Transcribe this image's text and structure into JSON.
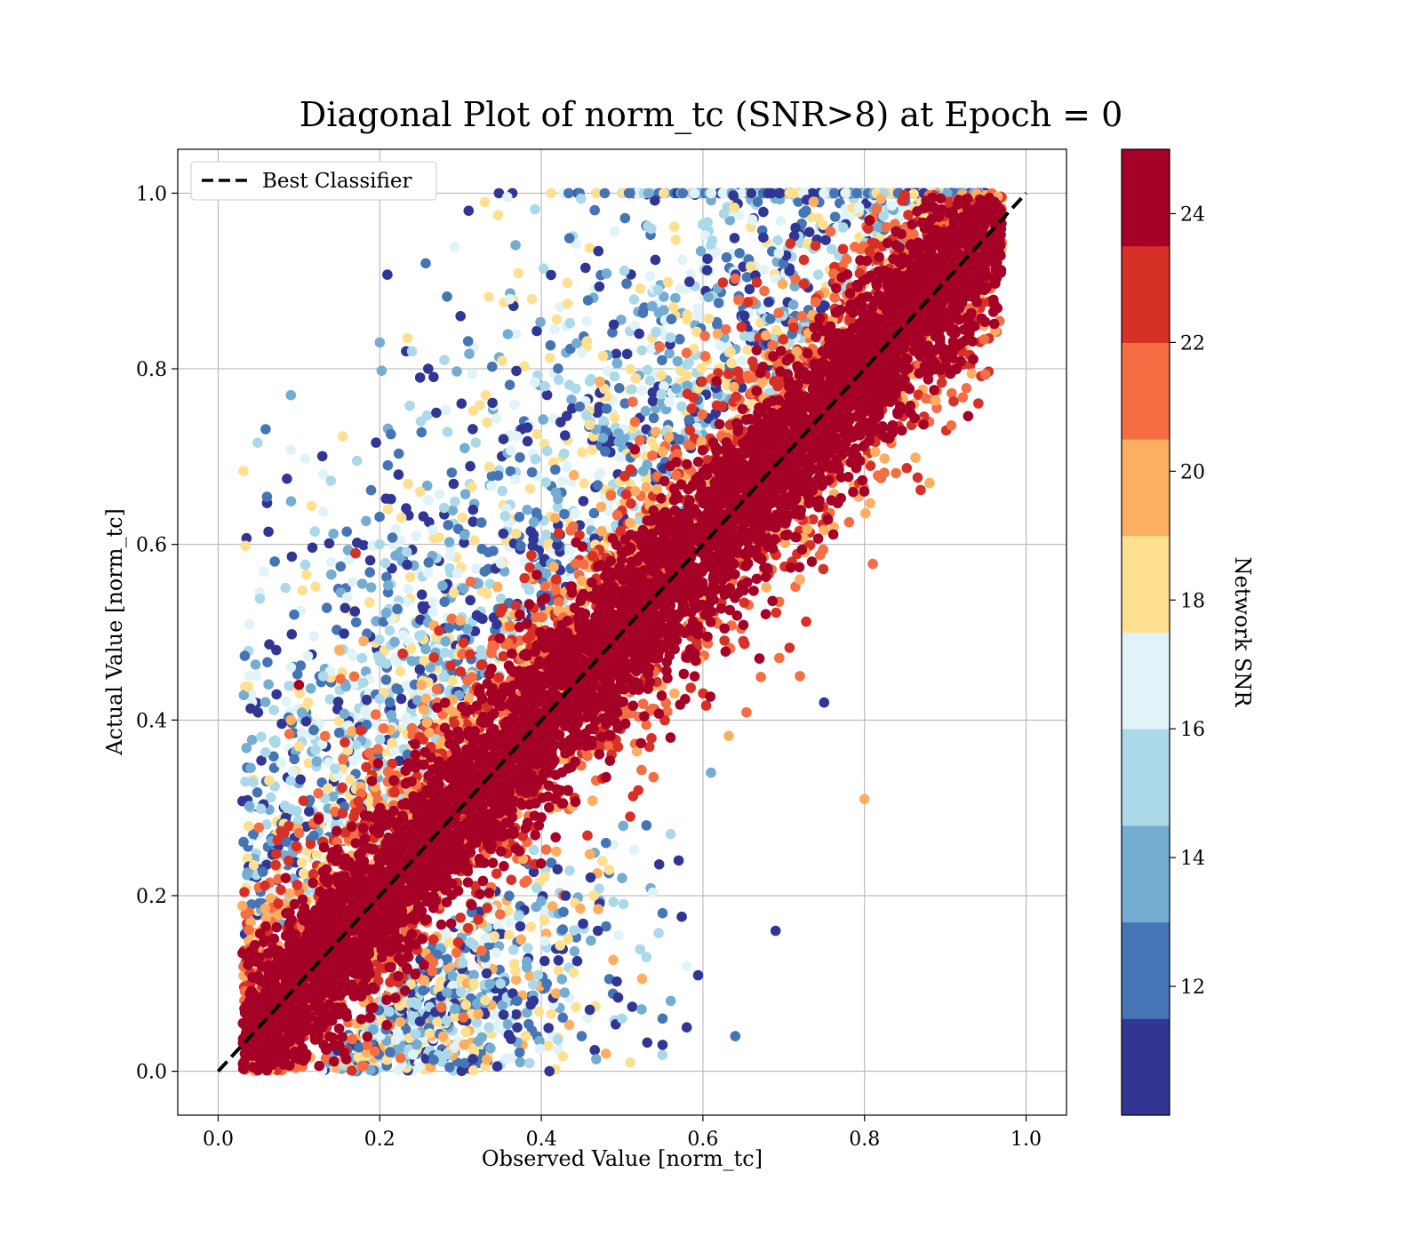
{
  "chart_data": {
    "type": "scatter",
    "title": "Diagonal Plot of norm_tc (SNR>8) at Epoch = 0",
    "xlabel": "Observed Value [norm_tc]",
    "ylabel": "Actual Value [norm_tc]",
    "xlim": [
      -0.05,
      1.05
    ],
    "ylim": [
      -0.05,
      1.05
    ],
    "xticks": [
      "0.0",
      "0.2",
      "0.4",
      "0.6",
      "0.8",
      "1.0"
    ],
    "yticks": [
      "0.0",
      "0.2",
      "0.4",
      "0.6",
      "0.8",
      "1.0"
    ],
    "xtick_values": [
      0.0,
      0.2,
      0.4,
      0.6,
      0.8,
      1.0
    ],
    "ytick_values": [
      0.0,
      0.2,
      0.4,
      0.6,
      0.8,
      1.0
    ],
    "grid": true,
    "legend": {
      "placement": "top-left",
      "entries": [
        {
          "label": "Best Classifier",
          "style": "dashed",
          "color": "#000000"
        }
      ]
    },
    "reference_line": {
      "name": "Best Classifier",
      "x": [
        0.0,
        1.0
      ],
      "y": [
        0.0,
        1.0
      ]
    },
    "colorbar": {
      "label": "Network SNR",
      "range": [
        10,
        25
      ],
      "ticks": [
        "12",
        "14",
        "16",
        "18",
        "20",
        "22",
        "24"
      ],
      "tick_values": [
        12,
        14,
        16,
        18,
        20,
        22,
        24
      ],
      "bands": [
        {
          "from": 10.0,
          "to": 11.5,
          "color": "#313695"
        },
        {
          "from": 11.5,
          "to": 13.0,
          "color": "#4575b4"
        },
        {
          "from": 13.0,
          "to": 14.5,
          "color": "#74add1"
        },
        {
          "from": 14.5,
          "to": 16.0,
          "color": "#abd9e9"
        },
        {
          "from": 16.0,
          "to": 17.5,
          "color": "#e0f3f8"
        },
        {
          "from": 17.5,
          "to": 19.0,
          "color": "#fee090"
        },
        {
          "from": 19.0,
          "to": 20.5,
          "color": "#fdae61"
        },
        {
          "from": 20.5,
          "to": 22.0,
          "color": "#f46d43"
        },
        {
          "from": 22.0,
          "to": 23.5,
          "color": "#d73027"
        },
        {
          "from": 23.5,
          "to": 25.0,
          "color": "#a50026"
        }
      ]
    },
    "points": [
      {
        "x": 0.09,
        "y": 0.77,
        "snr": 14
      },
      {
        "x": 0.2,
        "y": 0.83,
        "snr": 14
      },
      {
        "x": 0.24,
        "y": 0.82,
        "snr": 15
      },
      {
        "x": 0.26,
        "y": 0.8,
        "snr": 11
      },
      {
        "x": 0.28,
        "y": 0.81,
        "snr": 15
      },
      {
        "x": 0.13,
        "y": 0.68,
        "snr": 17
      },
      {
        "x": 0.21,
        "y": 0.69,
        "snr": 12
      },
      {
        "x": 0.14,
        "y": 0.58,
        "snr": 17
      },
      {
        "x": 0.17,
        "y": 0.59,
        "snr": 23
      },
      {
        "x": 0.2,
        "y": 0.6,
        "snr": 15
      },
      {
        "x": 0.21,
        "y": 0.64,
        "snr": 18
      },
      {
        "x": 0.25,
        "y": 0.66,
        "snr": 18
      },
      {
        "x": 0.09,
        "y": 0.46,
        "snr": 17
      },
      {
        "x": 0.1,
        "y": 0.44,
        "snr": 24
      },
      {
        "x": 0.13,
        "y": 0.45,
        "snr": 15
      },
      {
        "x": 0.09,
        "y": 0.4,
        "snr": 20
      },
      {
        "x": 0.16,
        "y": 0.54,
        "snr": 17
      },
      {
        "x": 0.18,
        "y": 0.49,
        "snr": 19
      },
      {
        "x": 0.15,
        "y": 0.48,
        "snr": 20
      },
      {
        "x": 0.1,
        "y": 0.37,
        "snr": 18
      },
      {
        "x": 0.3,
        "y": 0.86,
        "snr": 11
      },
      {
        "x": 0.31,
        "y": 0.98,
        "snr": 11
      },
      {
        "x": 0.33,
        "y": 0.99,
        "snr": 18
      },
      {
        "x": 0.25,
        "y": 0.79,
        "snr": 11
      },
      {
        "x": 0.27,
        "y": 0.75,
        "snr": 11
      },
      {
        "x": 0.42,
        "y": 0.23,
        "snr": 11
      },
      {
        "x": 0.43,
        "y": 0.2,
        "snr": 11
      },
      {
        "x": 0.47,
        "y": 0.16,
        "snr": 11
      },
      {
        "x": 0.48,
        "y": 0.26,
        "snr": 12
      },
      {
        "x": 0.5,
        "y": 0.22,
        "snr": 14
      },
      {
        "x": 0.51,
        "y": 0.29,
        "snr": 22
      },
      {
        "x": 0.53,
        "y": 0.28,
        "snr": 12
      },
      {
        "x": 0.55,
        "y": 0.18,
        "snr": 12
      },
      {
        "x": 0.57,
        "y": 0.24,
        "snr": 11
      },
      {
        "x": 0.56,
        "y": 0.27,
        "snr": 15
      },
      {
        "x": 0.52,
        "y": 0.32,
        "snr": 22
      },
      {
        "x": 0.56,
        "y": 0.38,
        "snr": 24
      },
      {
        "x": 0.61,
        "y": 0.34,
        "snr": 14
      },
      {
        "x": 0.46,
        "y": 0.07,
        "snr": 11
      },
      {
        "x": 0.5,
        "y": 0.06,
        "snr": 15
      },
      {
        "x": 0.53,
        "y": 0.13,
        "snr": 15
      },
      {
        "x": 0.55,
        "y": 0.06,
        "snr": 12
      },
      {
        "x": 0.55,
        "y": 0.03,
        "snr": 11
      },
      {
        "x": 0.58,
        "y": 0.05,
        "snr": 11
      },
      {
        "x": 0.58,
        "y": 0.12,
        "snr": 17
      },
      {
        "x": 0.51,
        "y": 0.01,
        "snr": 18
      },
      {
        "x": 0.48,
        "y": 0.02,
        "snr": 20
      },
      {
        "x": 0.45,
        "y": 0.04,
        "snr": 12
      },
      {
        "x": 0.64,
        "y": 0.04,
        "snr": 12
      },
      {
        "x": 0.69,
        "y": 0.16,
        "snr": 11
      },
      {
        "x": 0.72,
        "y": 0.45,
        "snr": 21
      },
      {
        "x": 0.75,
        "y": 0.42,
        "snr": 11
      },
      {
        "x": 0.8,
        "y": 0.31,
        "snr": 20
      },
      {
        "x": 0.72,
        "y": 0.56,
        "snr": 20
      },
      {
        "x": 0.67,
        "y": 0.47,
        "snr": 24
      },
      {
        "x": 0.65,
        "y": 0.49,
        "snr": 22
      },
      {
        "x": 0.41,
        "y": 0.0,
        "snr": 11
      }
    ]
  }
}
